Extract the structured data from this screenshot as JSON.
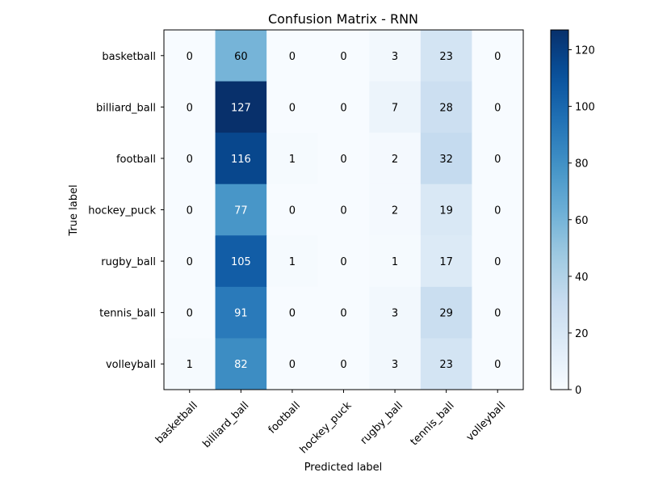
{
  "chart_data": {
    "type": "heatmap",
    "title": "Confusion Matrix - RNN",
    "xlabel": "Predicted label",
    "ylabel": "True label",
    "x_categories": [
      "basketball",
      "billiard_ball",
      "football",
      "hockey_puck",
      "rugby_ball",
      "tennis_ball",
      "volleyball"
    ],
    "y_categories": [
      "basketball",
      "billiard_ball",
      "football",
      "hockey_puck",
      "rugby_ball",
      "tennis_ball",
      "volleyball"
    ],
    "values": [
      [
        0,
        60,
        0,
        0,
        3,
        23,
        0
      ],
      [
        0,
        127,
        0,
        0,
        7,
        28,
        0
      ],
      [
        0,
        116,
        1,
        0,
        2,
        32,
        0
      ],
      [
        0,
        77,
        0,
        0,
        2,
        19,
        0
      ],
      [
        0,
        105,
        1,
        0,
        1,
        17,
        0
      ],
      [
        0,
        91,
        0,
        0,
        3,
        29,
        0
      ],
      [
        1,
        82,
        0,
        0,
        3,
        23,
        0
      ]
    ],
    "colormap": "Blues",
    "colorbar": {
      "min": 0,
      "max": 127,
      "ticks": [
        0,
        20,
        40,
        60,
        80,
        100,
        120
      ]
    },
    "grid": false
  }
}
